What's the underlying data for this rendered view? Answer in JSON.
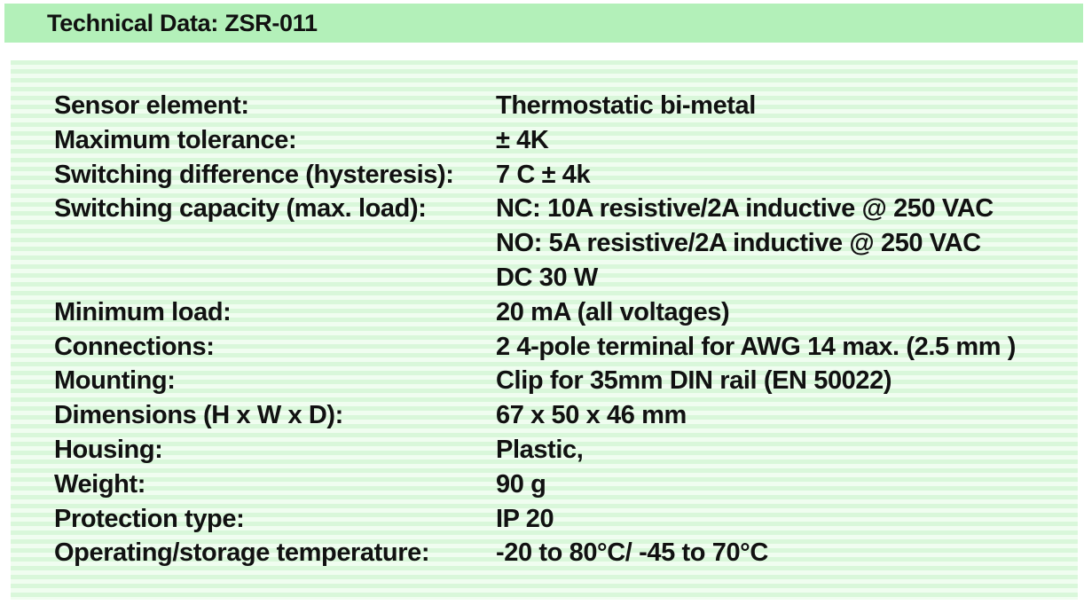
{
  "header": {
    "title": "Technical Data: ZSR-011"
  },
  "specs": [
    {
      "label": "Sensor element:",
      "values": [
        "Thermostatic bi-metal"
      ]
    },
    {
      "label": "Maximum tolerance:",
      "values": [
        "± 4K"
      ]
    },
    {
      "label": "Switching difference (hysteresis):",
      "values": [
        "7 C ± 4k"
      ]
    },
    {
      "label": "Switching capacity (max. load):",
      "values": [
        "NC: 10A resistive/2A inductive @ 250 VAC",
        "NO: 5A resistive/2A inductive @ 250 VAC",
        "DC 30 W"
      ]
    },
    {
      "label": "Minimum load:",
      "values": [
        "20 mA (all voltages)"
      ]
    },
    {
      "label": "Connections:",
      "values": [
        "2 4-pole terminal for AWG 14 max. (2.5 mm )"
      ]
    },
    {
      "label": "Mounting:",
      "values": [
        "Clip for 35mm DIN rail (EN 50022)"
      ]
    },
    {
      "label": "Dimensions (H x W x D):",
      "values": [
        "67 x 50 x 46 mm"
      ]
    },
    {
      "label": "Housing:",
      "values": [
        "Plastic,"
      ]
    },
    {
      "label": "Weight:",
      "values": [
        "90 g"
      ]
    },
    {
      "label": "Protection type:",
      "values": [
        "IP 20"
      ]
    },
    {
      "label": "Operating/storage temperature:",
      "values": [
        "-20 to 80°C/ -45 to 70°C"
      ]
    }
  ],
  "colors": {
    "header_bg": "#b3f0b9",
    "panel_stripe_dark": "#d9f7da",
    "panel_stripe_light": "#f0fdf0",
    "text": "#111111"
  }
}
